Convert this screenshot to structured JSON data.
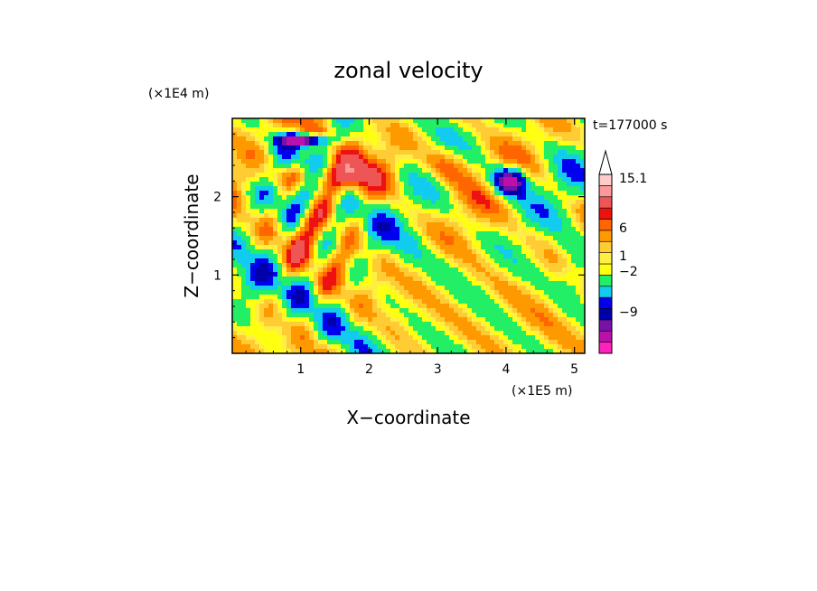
{
  "chart_data": {
    "type": "heatmap",
    "title": "zonal velocity",
    "xlabel": "X−coordinate",
    "ylabel": "Z−coordinate",
    "x_unit": "(×1E5 m)",
    "y_unit": "(×1E4 m)",
    "time_label": "t=177000 s",
    "xlim": [
      0,
      5.15
    ],
    "ylim": [
      0,
      3.0
    ],
    "x_ticks": [
      1,
      2,
      3,
      4,
      5
    ],
    "y_ticks": [
      1,
      2
    ],
    "colorbar": {
      "labels": [
        {
          "text": "15.1",
          "value": 15.1
        },
        {
          "text": "6",
          "value": 6
        },
        {
          "text": "1",
          "value": 1
        },
        {
          "text": "−2",
          "value": -2
        },
        {
          "text": "−9",
          "value": -9
        }
      ],
      "extend": "max",
      "colors": [
        "#ff22bb",
        "#bb11aa",
        "#7711aa",
        "#0000aa",
        "#0000ee",
        "#11ccee",
        "#22ee66",
        "#ffff11",
        "#ffee44",
        "#ffcc33",
        "#ff9900",
        "#ff6600",
        "#ee1111",
        "#ee5555",
        "#ff9999",
        "#ffcccc"
      ]
    },
    "pattern": {
      "background_level": "light green to yellow",
      "features": [
        {
          "type": "negative jet",
          "x": 1.0,
          "z": 2.7,
          "value": -8
        },
        {
          "type": "negative jet",
          "x": 4.0,
          "z": 2.2,
          "value": -8
        },
        {
          "type": "positive band",
          "x": 1.2,
          "z": 2.2,
          "value": 5
        },
        {
          "type": "positive band",
          "x": 3.1,
          "z": 2.4,
          "value": 5
        },
        {
          "type": "wave train",
          "x_range": [
            0.2,
            2.4
          ],
          "z_range": [
            0.2,
            2.8
          ]
        }
      ]
    }
  }
}
